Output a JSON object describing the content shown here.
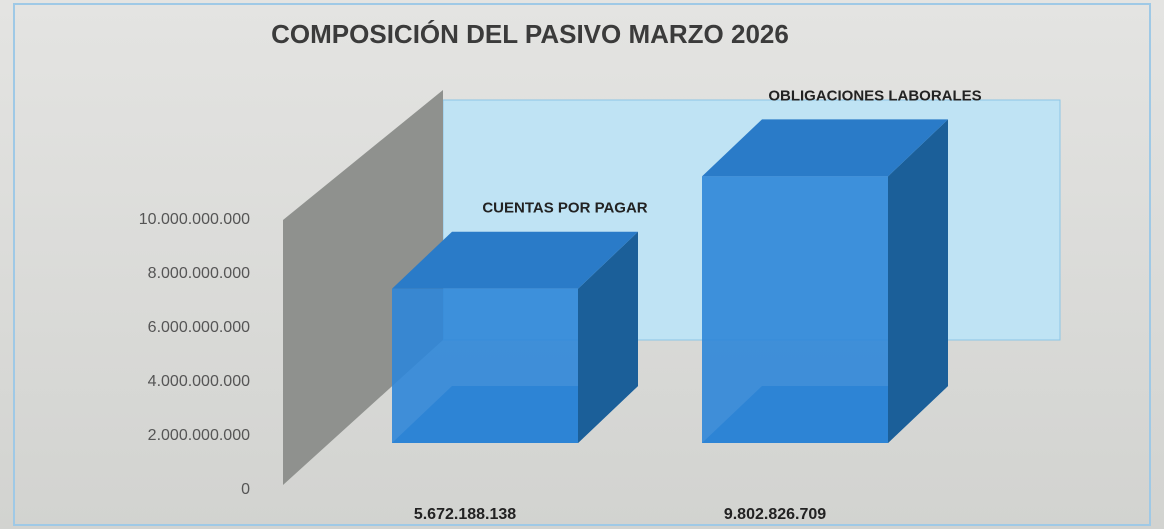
{
  "chart_data": {
    "type": "bar3d",
    "title": "COMPOSICIÓN DEL PASIVO MARZO 2026",
    "categories": [
      "CUENTAS POR PAGAR",
      "OBLIGACIONES LABORALES"
    ],
    "values": [
      5672188138,
      9802826709
    ],
    "value_labels": [
      "5.672.188.138",
      "9.802.826.709"
    ],
    "color": "#2f86d8",
    "ylim": [
      0,
      10000000000
    ],
    "yticks": [
      0,
      {
        "value": 2000000000,
        "label": "2.000.000.000"
      },
      {
        "value": 4000000000,
        "label": "4.000.000.000"
      },
      {
        "value": 6000000000,
        "label": "6.000.000.000"
      },
      {
        "value": 8000000000,
        "label": "8.000.000.000"
      },
      {
        "value": 10000000000,
        "label": "10.000.000.000"
      }
    ]
  }
}
